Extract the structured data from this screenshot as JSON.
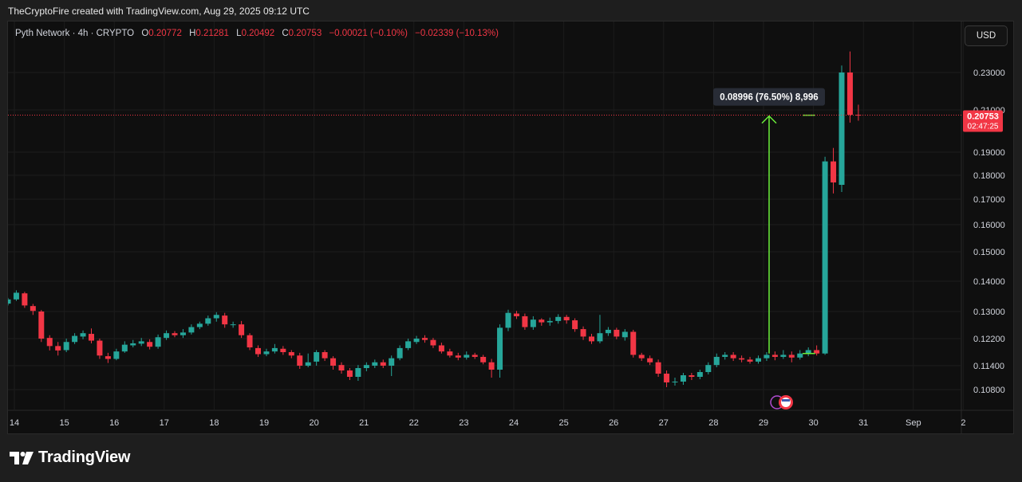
{
  "caption": "TheCryptoFire created with TradingView.com, Aug 29, 2025 09:12 UTC",
  "legend": {
    "symbol": "Pyth Network · 4h · CRYPTO",
    "o_label": "O",
    "o_value": "0.20772",
    "h_label": "H",
    "h_value": "0.21281",
    "l_label": "L",
    "l_value": "0.20492",
    "c_label": "C",
    "c_value": "0.20753",
    "change": "−0.00021 (−0.10%)",
    "change2": "−0.02339 (−10.13%)"
  },
  "currency_button": "USD",
  "brand": "TradingView",
  "colors": {
    "up": "#26a69a",
    "down": "#f23645",
    "measure_fill": "#1e2a4a",
    "measure_line": "#6cf03a",
    "price_tag_bg": "#f23645",
    "text_muted": "#d1d4dc",
    "grid": "#1c1c1c"
  },
  "chart_data": {
    "type": "candlestick",
    "y_ticks": [
      "0.23000",
      "0.21000",
      "0.19000",
      "0.18000",
      "0.17000",
      "0.16000",
      "0.15000",
      "0.14000",
      "0.13000",
      "0.12200",
      "0.11400",
      "0.10800"
    ],
    "x_ticks": [
      "14",
      "15",
      "16",
      "17",
      "18",
      "19",
      "20",
      "21",
      "22",
      "23",
      "24",
      "25",
      "26",
      "27",
      "28",
      "29",
      "30",
      "31",
      "Sep",
      "2"
    ],
    "last_price": "0.20753",
    "countdown": "02:47:25",
    "measure_label": "0.08996 (76.50%) 8,996",
    "measure": {
      "from": 0.1176,
      "to": 0.2075
    },
    "candles": [
      [
        0.1326,
        0.134,
        0.132,
        0.1345
      ],
      [
        0.134,
        0.1362,
        0.1335,
        0.137
      ],
      [
        0.136,
        0.132,
        0.1312,
        0.1365
      ],
      [
        0.1318,
        0.1302,
        0.129,
        0.1325
      ],
      [
        0.13,
        0.122,
        0.121,
        0.1305
      ],
      [
        0.1222,
        0.1198,
        0.1185,
        0.123
      ],
      [
        0.1198,
        0.1185,
        0.117,
        0.121
      ],
      [
        0.1186,
        0.121,
        0.118,
        0.122
      ],
      [
        0.121,
        0.1228,
        0.1204,
        0.1236
      ],
      [
        0.1226,
        0.1236,
        0.1218,
        0.1244
      ],
      [
        0.1234,
        0.1214,
        0.1206,
        0.125
      ],
      [
        0.1214,
        0.117,
        0.116,
        0.122
      ],
      [
        0.1168,
        0.116,
        0.1148,
        0.1178
      ],
      [
        0.116,
        0.1182,
        0.1156,
        0.119
      ],
      [
        0.1182,
        0.1202,
        0.1178,
        0.1212
      ],
      [
        0.12,
        0.1206,
        0.1194,
        0.1216
      ],
      [
        0.1205,
        0.1212,
        0.1198,
        0.1222
      ],
      [
        0.121,
        0.1196,
        0.1188,
        0.1218
      ],
      [
        0.1196,
        0.1224,
        0.119,
        0.1232
      ],
      [
        0.1222,
        0.1236,
        0.1216,
        0.1244
      ],
      [
        0.1236,
        0.123,
        0.1224,
        0.1242
      ],
      [
        0.123,
        0.1238,
        0.1222,
        0.1248
      ],
      [
        0.1238,
        0.1254,
        0.1232,
        0.1262
      ],
      [
        0.1254,
        0.1264,
        0.1248,
        0.127
      ],
      [
        0.1264,
        0.128,
        0.1258,
        0.1288
      ],
      [
        0.128,
        0.129,
        0.127,
        0.1298
      ],
      [
        0.1288,
        0.1262,
        0.1252,
        0.1296
      ],
      [
        0.1262,
        0.1262,
        0.1252,
        0.127
      ],
      [
        0.1262,
        0.123,
        0.1222,
        0.1272
      ],
      [
        0.123,
        0.1194,
        0.1186,
        0.1236
      ],
      [
        0.1192,
        0.1174,
        0.1166,
        0.12
      ],
      [
        0.1174,
        0.1182,
        0.1168,
        0.119
      ],
      [
        0.1182,
        0.1192,
        0.1176,
        0.1204
      ],
      [
        0.119,
        0.118,
        0.1172,
        0.1198
      ],
      [
        0.118,
        0.117,
        0.1162,
        0.1186
      ],
      [
        0.117,
        0.114,
        0.1132,
        0.1178
      ],
      [
        0.114,
        0.115,
        0.1136,
        0.1176
      ],
      [
        0.1152,
        0.118,
        0.114,
        0.1186
      ],
      [
        0.118,
        0.1162,
        0.1154,
        0.1186
      ],
      [
        0.1162,
        0.114,
        0.113,
        0.1168
      ],
      [
        0.1142,
        0.1128,
        0.112,
        0.115
      ],
      [
        0.1128,
        0.1112,
        0.1104,
        0.1134
      ],
      [
        0.1112,
        0.1134,
        0.1102,
        0.1142
      ],
      [
        0.1134,
        0.1142,
        0.1126,
        0.115
      ],
      [
        0.114,
        0.115,
        0.1134,
        0.1158
      ],
      [
        0.115,
        0.114,
        0.1134,
        0.1158
      ],
      [
        0.114,
        0.1162,
        0.1114,
        0.117
      ],
      [
        0.1162,
        0.1192,
        0.1156,
        0.12
      ],
      [
        0.1192,
        0.1212,
        0.1186,
        0.122
      ],
      [
        0.121,
        0.122,
        0.1204,
        0.1228
      ],
      [
        0.1222,
        0.1216,
        0.1208,
        0.123
      ],
      [
        0.1216,
        0.12,
        0.1192,
        0.1222
      ],
      [
        0.12,
        0.1182,
        0.1176,
        0.1208
      ],
      [
        0.1182,
        0.117,
        0.1164,
        0.119
      ],
      [
        0.117,
        0.1164,
        0.1156,
        0.1178
      ],
      [
        0.1164,
        0.1172,
        0.1158,
        0.1182
      ],
      [
        0.1172,
        0.1166,
        0.116,
        0.1178
      ],
      [
        0.1166,
        0.115,
        0.1144,
        0.1172
      ],
      [
        0.115,
        0.113,
        0.111,
        0.116
      ],
      [
        0.113,
        0.1252,
        0.111,
        0.1262
      ],
      [
        0.1252,
        0.1296,
        0.1242,
        0.1306
      ],
      [
        0.1294,
        0.1286,
        0.1278,
        0.1302
      ],
      [
        0.1286,
        0.1254,
        0.1246,
        0.1294
      ],
      [
        0.1254,
        0.1276,
        0.1246,
        0.1286
      ],
      [
        0.1276,
        0.1268,
        0.1258,
        0.128
      ],
      [
        0.1268,
        0.1272,
        0.1258,
        0.1282
      ],
      [
        0.1272,
        0.1284,
        0.1264,
        0.1292
      ],
      [
        0.1284,
        0.1274,
        0.1264,
        0.129
      ],
      [
        0.1274,
        0.1248,
        0.124,
        0.128
      ],
      [
        0.1248,
        0.1226,
        0.1216,
        0.1256
      ],
      [
        0.1226,
        0.1212,
        0.1204,
        0.1234
      ],
      [
        0.1212,
        0.1236,
        0.1206,
        0.129
      ],
      [
        0.1236,
        0.1246,
        0.1228,
        0.1254
      ],
      [
        0.1246,
        0.1226,
        0.1218,
        0.1252
      ],
      [
        0.1224,
        0.124,
        0.1214,
        0.1248
      ],
      [
        0.124,
        0.1172,
        0.1164,
        0.1246
      ],
      [
        0.1172,
        0.1162,
        0.1154,
        0.1178
      ],
      [
        0.1162,
        0.115,
        0.1142,
        0.117
      ],
      [
        0.115,
        0.112,
        0.1112,
        0.1158
      ],
      [
        0.112,
        0.1098,
        0.1086,
        0.1128
      ],
      [
        0.1098,
        0.11,
        0.109,
        0.111
      ],
      [
        0.11,
        0.1116,
        0.1092,
        0.1122
      ],
      [
        0.1116,
        0.1112,
        0.1104,
        0.1122
      ],
      [
        0.1112,
        0.1124,
        0.1106,
        0.113
      ],
      [
        0.1124,
        0.1142,
        0.1118,
        0.115
      ],
      [
        0.1142,
        0.1166,
        0.1136,
        0.1176
      ],
      [
        0.1166,
        0.1172,
        0.1158,
        0.118
      ],
      [
        0.1172,
        0.1162,
        0.1154,
        0.118
      ],
      [
        0.1162,
        0.1158,
        0.115,
        0.117
      ],
      [
        0.1158,
        0.1152,
        0.1146,
        0.1166
      ],
      [
        0.1152,
        0.1162,
        0.1146,
        0.117
      ],
      [
        0.1162,
        0.1172,
        0.1154,
        0.118
      ],
      [
        0.1172,
        0.1166,
        0.1156,
        0.1182
      ],
      [
        0.1166,
        0.1172,
        0.116,
        0.1186
      ],
      [
        0.1172,
        0.1164,
        0.115,
        0.1182
      ],
      [
        0.1164,
        0.1176,
        0.1158,
        0.1186
      ],
      [
        0.1176,
        0.1186,
        0.1168,
        0.1194
      ],
      [
        0.1186,
        0.1176,
        0.117,
        0.12
      ],
      [
        0.1176,
        0.186,
        0.1172,
        0.188
      ],
      [
        0.186,
        0.177,
        0.1724,
        0.192
      ],
      [
        0.176,
        0.23,
        0.173,
        0.234
      ],
      [
        0.23,
        0.2077,
        0.204,
        0.242
      ],
      [
        0.2077,
        0.2075,
        0.2049,
        0.2128
      ]
    ]
  }
}
